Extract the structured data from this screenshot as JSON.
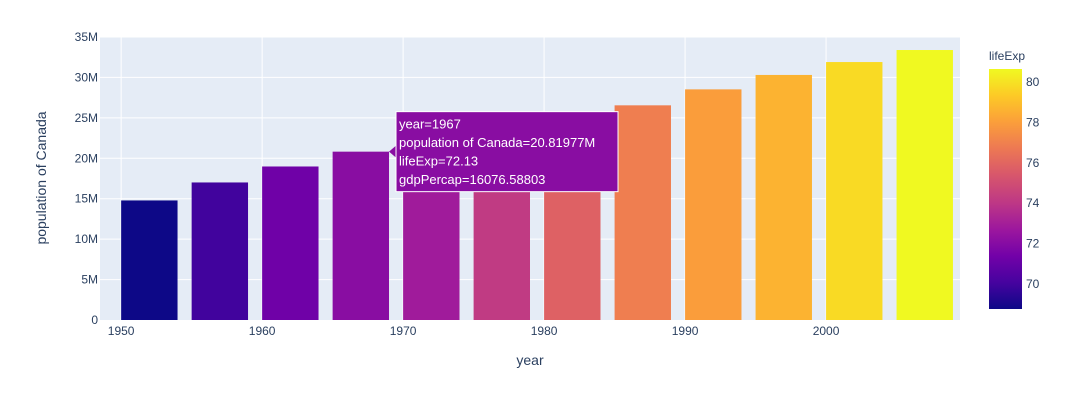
{
  "chart_data": {
    "type": "bar",
    "xlabel": "year",
    "ylabel": "population of Canada",
    "xlim": [
      1948.5,
      2009.5
    ],
    "ylim": [
      0,
      35000000
    ],
    "x_ticks": [
      1950,
      1960,
      1970,
      1980,
      1990,
      2000
    ],
    "x_tick_labels": [
      "1950",
      "1960",
      "1970",
      "1980",
      "1990",
      "2000"
    ],
    "y_ticks": [
      0,
      5000000,
      10000000,
      15000000,
      20000000,
      25000000,
      30000000,
      35000000
    ],
    "y_tick_labels": [
      "0",
      "5M",
      "10M",
      "15M",
      "20M",
      "25M",
      "30M",
      "35M"
    ],
    "bar_width_years": 4,
    "grid": true,
    "colorscale": "plasma",
    "bars": [
      {
        "year": 1952,
        "pop": 14785584,
        "lifeExp": 68.75
      },
      {
        "year": 1957,
        "pop": 17010154,
        "lifeExp": 69.96
      },
      {
        "year": 1962,
        "pop": 18985849,
        "lifeExp": 71.3
      },
      {
        "year": 1967,
        "pop": 20819767,
        "lifeExp": 72.13
      },
      {
        "year": 1972,
        "pop": 22284500,
        "lifeExp": 72.88
      },
      {
        "year": 1977,
        "pop": 23796400,
        "lifeExp": 74.21
      },
      {
        "year": 1982,
        "pop": 25201900,
        "lifeExp": 75.76
      },
      {
        "year": 1987,
        "pop": 26549700,
        "lifeExp": 76.86
      },
      {
        "year": 1992,
        "pop": 28523502,
        "lifeExp": 77.95
      },
      {
        "year": 1997,
        "pop": 30305843,
        "lifeExp": 78.61
      },
      {
        "year": 2002,
        "pop": 31902268,
        "lifeExp": 79.77
      },
      {
        "year": 2007,
        "pop": 33390141,
        "lifeExp": 80.653
      }
    ],
    "colorbar": {
      "title": "lifeExp",
      "range": [
        68.75,
        80.653
      ],
      "ticks": [
        70,
        72,
        74,
        76,
        78,
        80
      ],
      "tick_labels": [
        "70",
        "72",
        "74",
        "76",
        "78",
        "80"
      ]
    },
    "hover": {
      "bar_index": 3,
      "lines": [
        "year=1967",
        "population of Canada=20.81977M",
        "lifeExp=72.13",
        "gdpPercap=16076.58803"
      ]
    }
  }
}
